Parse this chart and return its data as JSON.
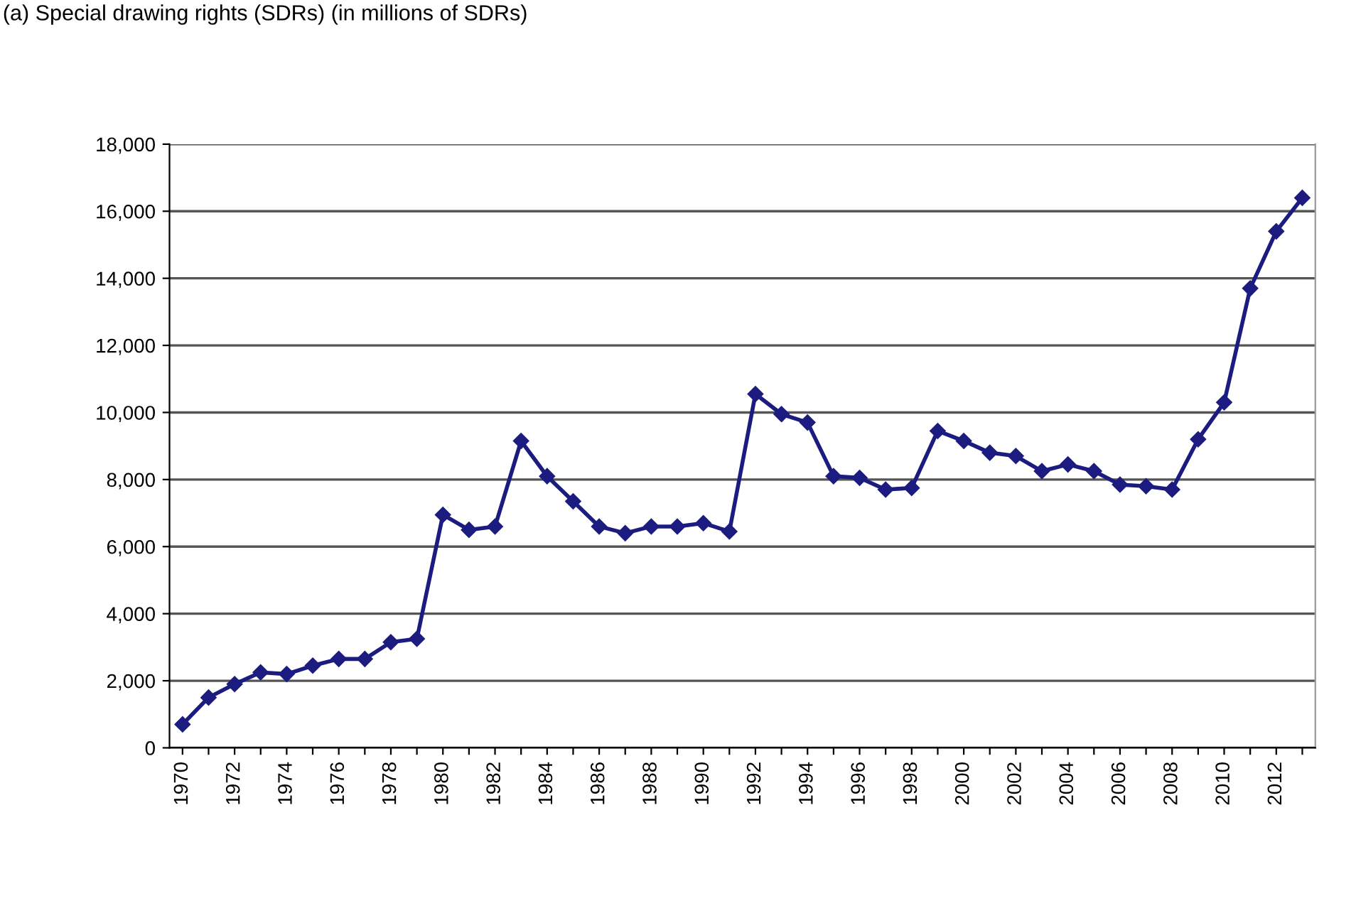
{
  "chart_data": {
    "type": "line",
    "title": "(a) Special drawing rights (SDRs) (in millions of SDRs)",
    "categories": [
      "1970",
      null,
      "1972",
      null,
      "1974",
      null,
      "1976",
      null,
      "1978",
      null,
      "1980",
      null,
      "1982",
      null,
      "1984",
      null,
      "1986",
      null,
      "1988",
      null,
      "1990",
      null,
      "1992",
      null,
      "1994",
      null,
      "1996",
      null,
      "1998",
      null,
      "2000",
      null,
      "2002",
      null,
      "2004",
      null,
      "2006",
      null,
      "2008",
      null,
      "2010",
      null,
      "2012",
      null
    ],
    "series": [
      {
        "color": "#1c1c80",
        "values": [
          700,
          1500,
          1900,
          2250,
          2200,
          2450,
          2650,
          2650,
          3150,
          3250,
          6950,
          6500,
          6600,
          9150,
          8100,
          7350,
          6600,
          6400,
          6600,
          6600,
          6700,
          6450,
          10550,
          9950,
          9700,
          8100,
          8050,
          7700,
          7750,
          9450,
          9150,
          8800,
          8700,
          8250,
          8450,
          8250,
          7850,
          7800,
          7700,
          9200,
          10300,
          13700,
          15400,
          16400
        ]
      }
    ],
    "ylim": [
      0,
      18000
    ],
    "yticks": [
      {
        "value": 0,
        "label": "0"
      },
      {
        "value": 2000,
        "label": "2,000"
      },
      {
        "value": 4000,
        "label": "4,000"
      },
      {
        "value": 6000,
        "label": "6,000"
      },
      {
        "value": 8000,
        "label": "8,000"
      },
      {
        "value": 10000,
        "label": "10,000"
      },
      {
        "value": 12000,
        "label": "12,000"
      },
      {
        "value": 14000,
        "label": "14,000"
      },
      {
        "value": 16000,
        "label": "16,000"
      },
      {
        "value": 18000,
        "label": "18,000"
      }
    ],
    "grid": "y",
    "marker": "diamond",
    "line_style": "solid"
  }
}
